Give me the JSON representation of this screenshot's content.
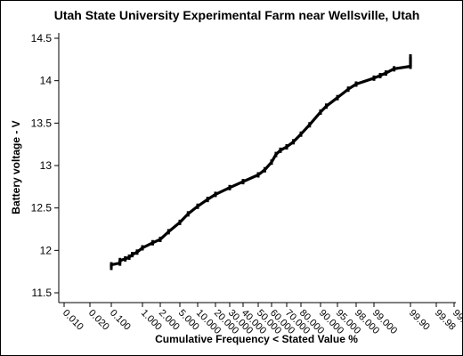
{
  "chart_data": {
    "type": "scatter",
    "title": "Utah State University Experimental Farm near Wellsville, Utah",
    "xlabel": "Cumulative Frequency < Stated Value %",
    "ylabel": "Battery voltage - V",
    "x_scale": "normal-probability",
    "ylim": [
      11.5,
      14.5
    ],
    "grid": false,
    "yticks": [
      11.5,
      12,
      12.5,
      13,
      13.5,
      14,
      14.5
    ],
    "ytick_labels": [
      "11.5",
      "12",
      "12.5",
      "13",
      "13.5",
      "14",
      "14.5"
    ],
    "xticks": [
      0.01,
      0.02,
      0.1,
      1,
      2,
      5,
      10,
      20,
      30,
      40,
      50,
      60,
      70,
      80,
      90,
      95,
      98,
      99,
      99.9,
      99.98,
      99.99
    ],
    "xtick_labels": [
      "0.010",
      "0.020",
      "0.100",
      "1.000",
      "2.000",
      "5.000",
      "10.000",
      "20.000",
      "30.000",
      "40.000",
      "50.000",
      "60.000",
      "70.000",
      "80.000",
      "90.000",
      "95.000",
      "98.000",
      "99.000",
      "99.90",
      "99.98",
      "99.99"
    ],
    "series": [
      {
        "color": "#000000",
        "points": [
          {
            "x": 0.1,
            "y": 11.8
          },
          {
            "x": 0.1,
            "y": 11.83
          },
          {
            "x": 0.2,
            "y": 11.85
          },
          {
            "x": 0.2,
            "y": 11.88
          },
          {
            "x": 0.3,
            "y": 11.9
          },
          {
            "x": 0.4,
            "y": 11.92
          },
          {
            "x": 0.5,
            "y": 11.95
          },
          {
            "x": 0.7,
            "y": 11.98
          },
          {
            "x": 1,
            "y": 12.03
          },
          {
            "x": 1.5,
            "y": 12.09
          },
          {
            "x": 2,
            "y": 12.13
          },
          {
            "x": 3,
            "y": 12.22
          },
          {
            "x": 5,
            "y": 12.33
          },
          {
            "x": 7,
            "y": 12.43
          },
          {
            "x": 10,
            "y": 12.52
          },
          {
            "x": 15,
            "y": 12.6
          },
          {
            "x": 20,
            "y": 12.66
          },
          {
            "x": 30,
            "y": 12.74
          },
          {
            "x": 40,
            "y": 12.81
          },
          {
            "x": 50,
            "y": 12.89
          },
          {
            "x": 55,
            "y": 12.95
          },
          {
            "x": 60,
            "y": 13.04
          },
          {
            "x": 63,
            "y": 13.13
          },
          {
            "x": 66,
            "y": 13.18
          },
          {
            "x": 70,
            "y": 13.22
          },
          {
            "x": 75,
            "y": 13.28
          },
          {
            "x": 80,
            "y": 13.37
          },
          {
            "x": 85,
            "y": 13.48
          },
          {
            "x": 90,
            "y": 13.63
          },
          {
            "x": 92,
            "y": 13.7
          },
          {
            "x": 95,
            "y": 13.8
          },
          {
            "x": 97,
            "y": 13.9
          },
          {
            "x": 98,
            "y": 13.96
          },
          {
            "x": 99,
            "y": 14.03
          },
          {
            "x": 99.3,
            "y": 14.06
          },
          {
            "x": 99.5,
            "y": 14.09
          },
          {
            "x": 99.7,
            "y": 14.14
          },
          {
            "x": 99.9,
            "y": 14.17
          },
          {
            "x": 99.9,
            "y": 14.21
          },
          {
            "x": 99.9,
            "y": 14.25
          },
          {
            "x": 99.9,
            "y": 14.28
          }
        ]
      }
    ]
  }
}
